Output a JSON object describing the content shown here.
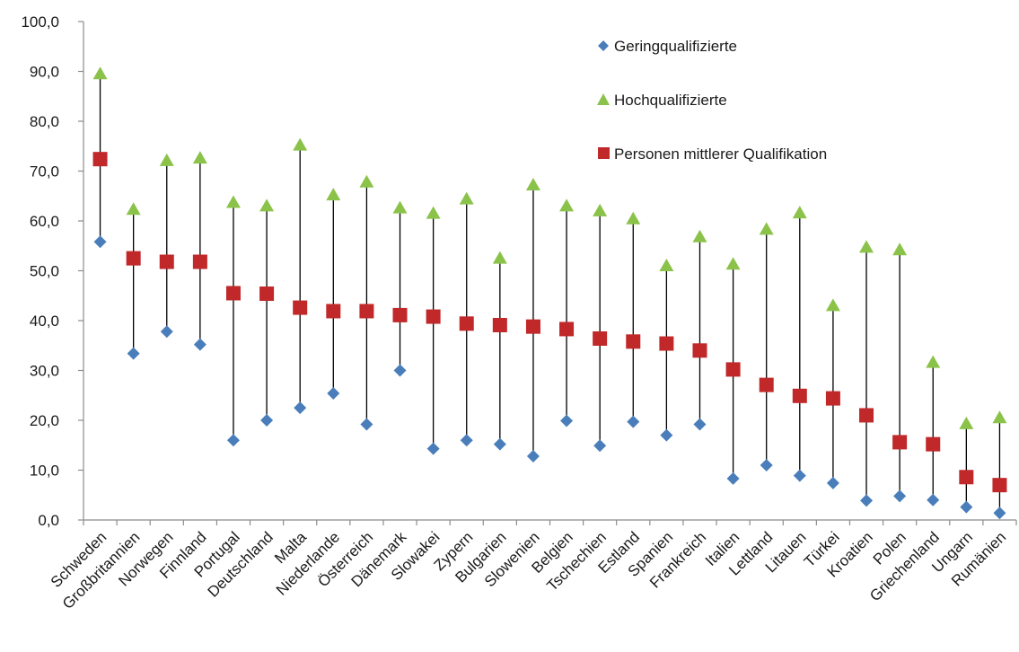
{
  "chart_data": {
    "type": "scatter",
    "ylim": [
      0,
      100
    ],
    "yticks": [
      "0,0",
      "10,0",
      "20,0",
      "30,0",
      "40,0",
      "50,0",
      "60,0",
      "70,0",
      "80,0",
      "90,0",
      "100,0"
    ],
    "categories": [
      "Schweden",
      "Großbritannien",
      "Norwegen",
      "Finnland",
      "Portugal",
      "Deutschland",
      "Malta",
      "Niederlande",
      "Österreich",
      "Dänemark",
      "Slowakei",
      "Zypern",
      "Bulgarien",
      "Slowenien",
      "Belgien",
      "Tschechien",
      "Estland",
      "Spanien",
      "Frankreich",
      "Italien",
      "Lettland",
      "Litauen",
      "Türkei",
      "Kroatien",
      "Polen",
      "Griechenland",
      "Ungarn",
      "Rumänien"
    ],
    "series": [
      {
        "name": "Geringqualifizierte",
        "marker": "diamond",
        "color": "#4a7ebb",
        "values": [
          55.8,
          33.4,
          37.8,
          35.2,
          16.0,
          20.0,
          22.5,
          25.4,
          19.2,
          30.0,
          14.3,
          16.0,
          15.2,
          12.8,
          19.9,
          14.9,
          19.7,
          17.0,
          19.2,
          8.3,
          11.0,
          8.9,
          7.4,
          3.9,
          4.8,
          4.0,
          2.6,
          1.4
        ]
      },
      {
        "name": "Hochqualifizierte",
        "marker": "triangle",
        "color": "#8bc34a",
        "values": [
          89.5,
          62.3,
          72.1,
          72.6,
          63.7,
          63.0,
          75.2,
          65.2,
          67.8,
          62.6,
          61.5,
          64.4,
          52.5,
          67.2,
          63.0,
          62.0,
          60.4,
          51.0,
          56.8,
          51.3,
          58.3,
          61.6,
          43.0,
          54.7,
          54.2,
          31.6,
          19.3,
          20.5
        ]
      },
      {
        "name": "Personen mittlerer Qualifikation",
        "marker": "square",
        "color": "#c0282a",
        "values": [
          72.4,
          52.5,
          51.8,
          51.8,
          45.5,
          45.4,
          42.6,
          41.9,
          41.9,
          41.1,
          40.8,
          39.4,
          39.1,
          38.8,
          38.3,
          36.4,
          35.8,
          35.4,
          34.0,
          30.2,
          27.1,
          24.9,
          24.4,
          21.0,
          15.6,
          15.2,
          8.6,
          7.0
        ]
      }
    ],
    "grid": false,
    "legend_position": "top-right"
  }
}
